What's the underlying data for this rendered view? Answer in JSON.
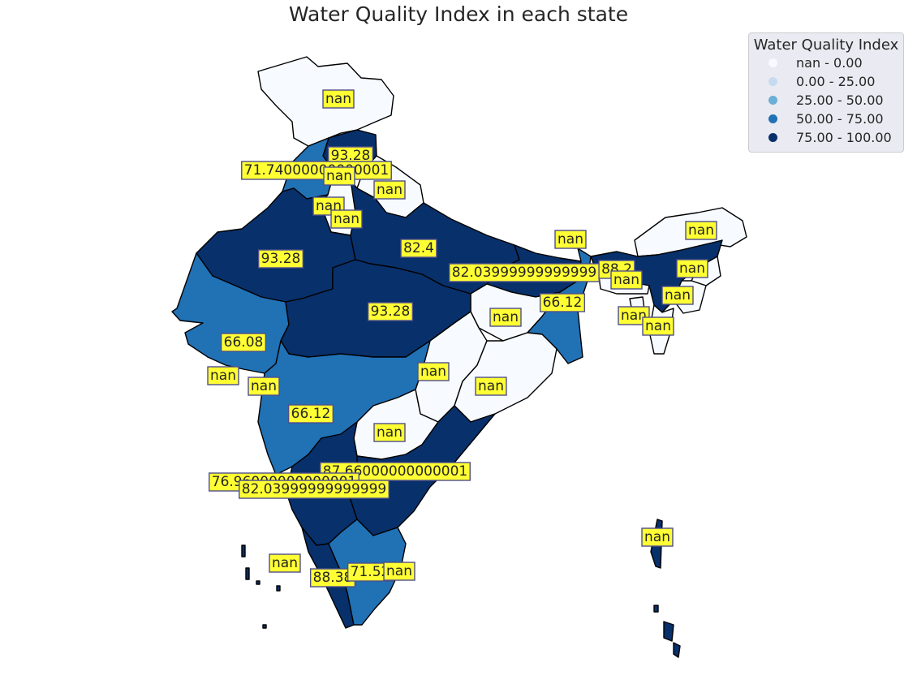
{
  "title": "Water Quality Index in each state",
  "legend": {
    "title": "Water Quality Index",
    "items": [
      {
        "label": "nan - 0.00",
        "color": "#f7fbff"
      },
      {
        "label": "0.00 - 25.00",
        "color": "#c6dbef"
      },
      {
        "label": "25.00 - 50.00",
        "color": "#6baed6"
      },
      {
        "label": "50.00 - 75.00",
        "color": "#2171b5"
      },
      {
        "label": "75.00 - 100.00",
        "color": "#08306b"
      }
    ]
  },
  "regions": [
    {
      "name": "jammu-kashmir",
      "value": "nan"
    },
    {
      "name": "himachal-pradesh",
      "value": "93.28"
    },
    {
      "name": "punjab",
      "value": "71.74000000000001"
    },
    {
      "name": "chandigarh",
      "value": "nan"
    },
    {
      "name": "uttarakhand",
      "value": "nan"
    },
    {
      "name": "haryana",
      "value": "nan"
    },
    {
      "name": "delhi",
      "value": "nan"
    },
    {
      "name": "rajasthan",
      "value": "93.28"
    },
    {
      "name": "uttar-pradesh",
      "value": "82.4"
    },
    {
      "name": "bihar",
      "value": "82.03999999999999"
    },
    {
      "name": "sikkim",
      "value": "nan"
    },
    {
      "name": "arunachal-pradesh",
      "value": "nan"
    },
    {
      "name": "assam",
      "value": "88.2"
    },
    {
      "name": "meghalaya",
      "value": "nan"
    },
    {
      "name": "nagaland",
      "value": "nan"
    },
    {
      "name": "manipur",
      "value": "nan"
    },
    {
      "name": "tripura",
      "value": "nan"
    },
    {
      "name": "mizoram",
      "value": "nan"
    },
    {
      "name": "west-bengal",
      "value": "66.12"
    },
    {
      "name": "jharkhand",
      "value": "nan"
    },
    {
      "name": "madhya-pradesh",
      "value": "93.28"
    },
    {
      "name": "gujarat",
      "value": "66.08"
    },
    {
      "name": "daman-diu",
      "value": "nan"
    },
    {
      "name": "dadra-nagar-haveli",
      "value": "nan"
    },
    {
      "name": "chhattisgarh",
      "value": "nan"
    },
    {
      "name": "odisha",
      "value": "nan"
    },
    {
      "name": "maharashtra",
      "value": "66.12"
    },
    {
      "name": "telangana",
      "value": "nan"
    },
    {
      "name": "andhra-pradesh",
      "value": "87.66000000000001"
    },
    {
      "name": "goa",
      "value": "76.96000000000001"
    },
    {
      "name": "karnataka",
      "value": "82.03999999999999"
    },
    {
      "name": "lakshadweep",
      "value": "nan"
    },
    {
      "name": "kerala",
      "value": "88.38"
    },
    {
      "name": "tamil-nadu",
      "value": "71.52"
    },
    {
      "name": "puducherry",
      "value": "nan"
    },
    {
      "name": "andaman-nicobar",
      "value": "nan"
    }
  ]
}
